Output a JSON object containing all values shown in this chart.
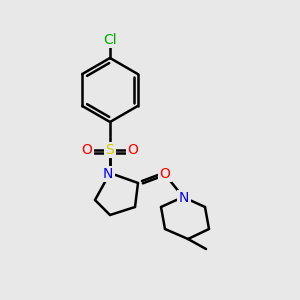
{
  "bg_color": "#e8e8e8",
  "bond_color": "#000000",
  "bond_width": 1.8,
  "atom_colors": {
    "N": "#0000ff",
    "O": "#ff0000",
    "S": "#cccc00",
    "Cl": "#00aa00",
    "C": "#000000"
  },
  "font_size": 9,
  "label_font_size": 9
}
